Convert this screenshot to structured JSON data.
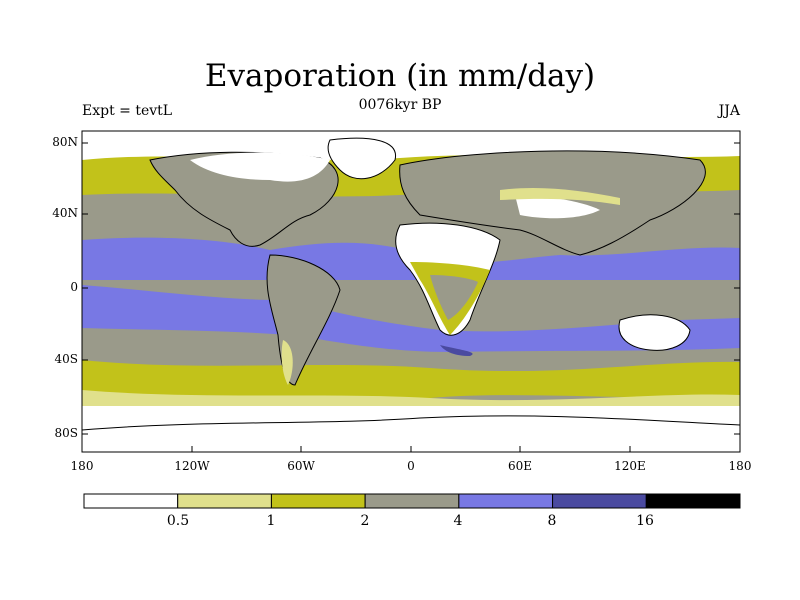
{
  "title": "Evaporation (in mm/day)",
  "subtitle_left": "Expt = tevtL",
  "subtitle_center": "0076kyr BP",
  "subtitle_right": "JJA",
  "lat_ticks": [
    "80N",
    "40N",
    "0",
    "40S",
    "80S"
  ],
  "lon_ticks": [
    "180",
    "120W",
    "60W",
    "0",
    "60E",
    "120E",
    "180"
  ],
  "colorbar": {
    "labels": [
      "0.5",
      "1",
      "2",
      "4",
      "8",
      "16"
    ],
    "colors": [
      "#ffffff",
      "#e0e08c",
      "#c2c21a",
      "#9a9a8a",
      "#7878e4",
      "#4a4aa0",
      "#000000"
    ]
  }
}
